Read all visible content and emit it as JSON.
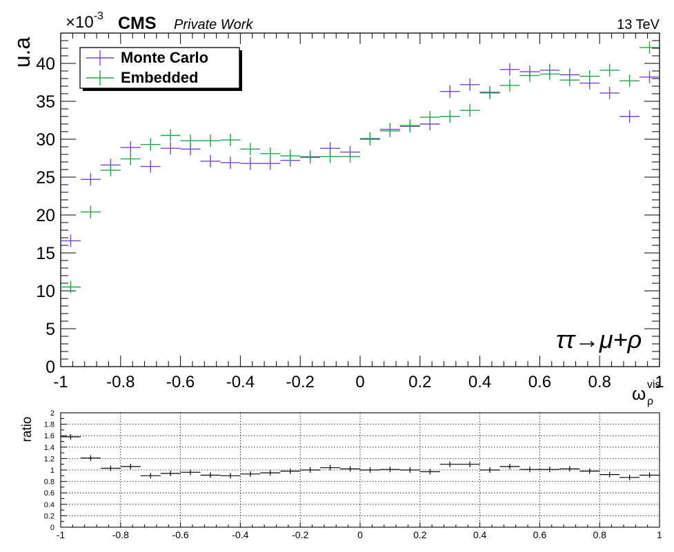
{
  "header": {
    "exponent_base": "×10",
    "exponent_power": "-3",
    "experiment": "CMS",
    "label": "Private Work",
    "energy": "13 TeV"
  },
  "main_plot": {
    "ylabel": "u.a",
    "x_axis_base": "ω",
    "x_axis_sub": "ρ",
    "x_axis_sup": "vis",
    "process": "ττ→μ+ρ",
    "legend": {
      "placement": "top-left"
    }
  },
  "ratio_plot": {
    "ylabel": "ratio"
  },
  "chart_data": [
    {
      "type": "scatter",
      "xlim": [
        -1,
        1
      ],
      "ylim": [
        0,
        44
      ],
      "x_ticks": [
        -1,
        -0.8,
        -0.6,
        -0.4,
        -0.2,
        0,
        0.2,
        0.4,
        0.6,
        0.8,
        1
      ],
      "x_tick_labels": [
        "-1",
        "-0.8",
        "-0.6",
        "-0.4",
        "-0.2",
        "0",
        "0.2",
        "0.4",
        "0.6",
        "0.8",
        "1"
      ],
      "y_ticks": [
        0,
        5,
        10,
        15,
        20,
        25,
        30,
        35,
        40
      ],
      "y_tick_labels": [
        "0",
        "5",
        "10",
        "15",
        "20",
        "25",
        "30",
        "35",
        "40"
      ],
      "grid": false,
      "x": [
        -0.9667,
        -0.9,
        -0.8333,
        -0.7667,
        -0.7,
        -0.6333,
        -0.5667,
        -0.5,
        -0.4333,
        -0.3667,
        -0.3,
        -0.2333,
        -0.1667,
        -0.1,
        -0.0333,
        0.0333,
        0.1,
        0.1667,
        0.2333,
        0.3,
        0.3667,
        0.4333,
        0.5,
        0.5667,
        0.6333,
        0.7,
        0.7667,
        0.8333,
        0.9,
        0.9667
      ],
      "series": [
        {
          "name": "Monte Carlo",
          "color": "#7a3fd6",
          "values": [
            16.6,
            24.7,
            26.6,
            28.9,
            26.4,
            28.8,
            28.7,
            27.1,
            26.9,
            26.8,
            26.8,
            27.2,
            27.6,
            28.8,
            28.3,
            30.0,
            31.3,
            31.7,
            32.0,
            36.3,
            37.2,
            36.2,
            39.2,
            38.9,
            39.1,
            38.5,
            37.4,
            36.1,
            33.0,
            38.2
          ]
        },
        {
          "name": "Embedded",
          "color": "#1aa64a",
          "values": [
            10.5,
            20.4,
            25.9,
            27.4,
            29.3,
            30.5,
            29.8,
            29.8,
            29.9,
            28.7,
            28.1,
            27.8,
            27.7,
            27.7,
            27.7,
            30.1,
            31.1,
            31.8,
            32.9,
            33.0,
            33.8,
            36.1,
            37.1,
            38.4,
            38.6,
            37.8,
            38.3,
            39.1,
            37.7,
            42.1
          ]
        }
      ]
    },
    {
      "type": "scatter",
      "xlim": [
        -1,
        1
      ],
      "ylim": [
        0,
        2
      ],
      "x_ticks": [
        -1,
        -0.8,
        -0.6,
        -0.4,
        -0.2,
        0,
        0.2,
        0.4,
        0.6,
        0.8,
        1
      ],
      "x_tick_labels": [
        "-1",
        "-0.8",
        "-0.6",
        "-0.4",
        "-0.2",
        "0",
        "0.2",
        "0.4",
        "0.6",
        "0.8",
        "1"
      ],
      "y_ticks": [
        0,
        0.2,
        0.4,
        0.6,
        0.8,
        1,
        1.2,
        1.4,
        1.6,
        1.8,
        2
      ],
      "y_tick_labels": [
        "0",
        "0.2",
        "0.4",
        "0.6",
        "0.8",
        "1",
        "1.2",
        "1.4",
        "1.6",
        "1.8",
        "2"
      ],
      "grid": true,
      "x": [
        -0.9667,
        -0.9,
        -0.8333,
        -0.7667,
        -0.7,
        -0.6333,
        -0.5667,
        -0.5,
        -0.4333,
        -0.3667,
        -0.3,
        -0.2333,
        -0.1667,
        -0.1,
        -0.0333,
        0.0333,
        0.1,
        0.1667,
        0.2333,
        0.3,
        0.3667,
        0.4333,
        0.5,
        0.5667,
        0.6333,
        0.7,
        0.7667,
        0.8333,
        0.9,
        0.9667
      ],
      "series": [
        {
          "color": "#000000",
          "values": [
            1.58,
            1.21,
            1.03,
            1.06,
            0.9,
            0.94,
            0.96,
            0.91,
            0.9,
            0.93,
            0.95,
            0.98,
            1.0,
            1.04,
            1.02,
            1.0,
            1.01,
            1.0,
            0.97,
            1.1,
            1.1,
            1.0,
            1.06,
            1.01,
            1.01,
            1.02,
            0.98,
            0.92,
            0.87,
            0.91
          ]
        }
      ]
    }
  ]
}
